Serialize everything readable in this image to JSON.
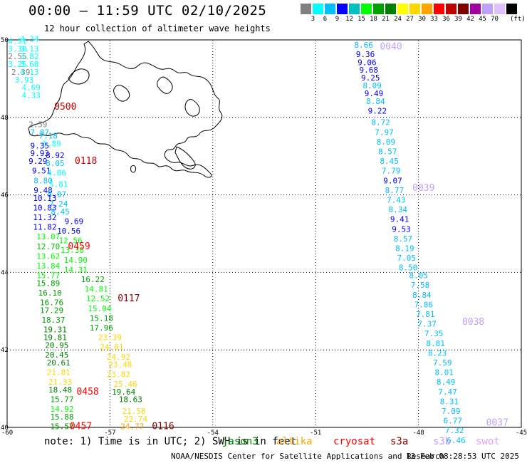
{
  "header": {
    "title": "00:00 – 11:59 UTC 02/10/2025",
    "subtitle": "12 hour collection of altimeter wave heights"
  },
  "legend": {
    "colors": [
      "#808080",
      "#00ffff",
      "#00bfff",
      "#0000ff",
      "#00c0c0",
      "#00ff00",
      "#00a000",
      "#008000",
      "#ffff00",
      "#ffd700",
      "#ffa500",
      "#ff0000",
      "#c00000",
      "#800000",
      "#a000a0",
      "#c0a0ff",
      "#e0c0ff",
      "#000000"
    ],
    "labels": [
      "3",
      "6",
      "9",
      "12",
      "15",
      "18",
      "21",
      "24",
      "27",
      "30",
      "33",
      "36",
      "39",
      "42",
      "45",
      "70"
    ],
    "unit": "(ft)"
  },
  "axes": {
    "lon_ticks": [
      {
        "v": -60,
        "t": "-60"
      },
      {
        "v": -57,
        "t": "-57"
      },
      {
        "v": -54,
        "t": "-54"
      },
      {
        "v": -51,
        "t": "-51"
      },
      {
        "v": -48,
        "t": "-48"
      },
      {
        "v": -45,
        "t": "-45"
      }
    ],
    "lat_ticks": [
      {
        "v": 50,
        "t": "50"
      },
      {
        "v": 48,
        "t": "48"
      },
      {
        "v": 46,
        "t": "46"
      },
      {
        "v": 44,
        "t": "44"
      },
      {
        "v": 42,
        "t": "42"
      },
      {
        "v": 40,
        "t": "40"
      }
    ],
    "lon_range": [
      -60,
      -45
    ],
    "lat_range": [
      40,
      50
    ]
  },
  "tracks": [
    {
      "label": "0040",
      "color": "#c0a0ff",
      "label_pos": [
        -48.8,
        49.75
      ],
      "points": [
        [
          -49.6,
          49.8,
          "8.66",
          "#00bfff"
        ],
        [
          -49.55,
          49.56,
          "9.36",
          "#0000ff"
        ],
        [
          -49.5,
          49.35,
          "9.06",
          "#0000ff"
        ],
        [
          -49.45,
          49.15,
          "9.68",
          "#0000ff"
        ],
        [
          -49.4,
          48.95,
          "9.25",
          "#0000ff"
        ],
        [
          -49.35,
          48.75,
          "8.09",
          "#00bfff"
        ],
        [
          -49.3,
          48.55,
          "9.49",
          "#0000ff"
        ],
        [
          -49.25,
          48.35,
          "8.84",
          "#00bfff"
        ],
        [
          -49.2,
          48.1,
          "9.22",
          "#0000ff"
        ]
      ]
    },
    {
      "label": "0039",
      "color": "#c0a0ff",
      "label_pos": [
        -47.85,
        46.1
      ],
      "points": [
        [
          -49.1,
          47.8,
          "8.72",
          "#00bfff"
        ],
        [
          -49.0,
          47.55,
          "7.97",
          "#00bfff"
        ],
        [
          -48.95,
          47.3,
          "8.09",
          "#00bfff"
        ],
        [
          -48.9,
          47.05,
          "8.57",
          "#00bfff"
        ],
        [
          -48.85,
          46.8,
          "8.45",
          "#00bfff"
        ],
        [
          -48.8,
          46.55,
          "7.79",
          "#00bfff"
        ],
        [
          -48.75,
          46.3,
          "9.07",
          "#0000ff"
        ],
        [
          -48.7,
          46.05,
          "8.77",
          "#00bfff"
        ],
        [
          -48.65,
          45.8,
          "7.43",
          "#00bfff"
        ],
        [
          -48.6,
          45.55,
          "8.34",
          "#00bfff"
        ],
        [
          -48.55,
          45.3,
          "9.41",
          "#0000ff"
        ],
        [
          -48.5,
          45.05,
          "9.53",
          "#0000ff"
        ],
        [
          -48.45,
          44.8,
          "8.57",
          "#00bfff"
        ],
        [
          -48.4,
          44.55,
          "8.19",
          "#00bfff"
        ],
        [
          -48.35,
          44.3,
          "7.05",
          "#00bfff"
        ],
        [
          -48.3,
          44.05,
          "8.50",
          "#00bfff"
        ]
      ]
    },
    {
      "label": "0038",
      "color": "#c0a0ff",
      "label_pos": [
        -46.4,
        42.65
      ],
      "points": [
        [
          -48.0,
          43.85,
          "8.05",
          "#00bfff"
        ],
        [
          -47.95,
          43.6,
          "7.58",
          "#00bfff"
        ],
        [
          -47.9,
          43.35,
          "8.84",
          "#00bfff"
        ],
        [
          -47.85,
          43.1,
          "7.86",
          "#00bfff"
        ],
        [
          -47.8,
          42.85,
          "7.81",
          "#00bfff"
        ],
        [
          -47.75,
          42.6,
          "7.37",
          "#00bfff"
        ],
        [
          -47.55,
          42.35,
          "7.35",
          "#00bfff"
        ],
        [
          -47.5,
          42.1,
          "8.81",
          "#00bfff"
        ],
        [
          -47.45,
          41.85,
          "8.23",
          "#00bfff"
        ],
        [
          -47.3,
          41.6,
          "7.59",
          "#00bfff"
        ],
        [
          -47.25,
          41.35,
          "8.01",
          "#00bfff"
        ],
        [
          -47.2,
          41.1,
          "8.49",
          "#00bfff"
        ],
        [
          -47.15,
          40.85,
          "7.47",
          "#00bfff"
        ],
        [
          -47.1,
          40.6,
          "8.31",
          "#00bfff"
        ],
        [
          -47.05,
          40.35,
          "7.09",
          "#00bfff"
        ],
        [
          -47.0,
          40.1,
          "6.77",
          "#00bfff"
        ],
        [
          -46.95,
          39.85,
          "7.32",
          "#00bfff"
        ],
        [
          -46.9,
          39.6,
          "6.46",
          "#00bfff"
        ]
      ],
      "extra_label": {
        "text": "0037",
        "color": "#c0a0ff",
        "pos": [
          -45.7,
          40.05
        ]
      }
    },
    {
      "label": "0500",
      "color": "#c00000",
      "label_pos": [
        -58.3,
        48.2
      ],
      "points": [
        [
          -59.7,
          49.9,
          "4.51",
          "#00ffff"
        ],
        [
          -59.35,
          49.95,
          "4.34",
          "#00ffff"
        ],
        [
          -59.7,
          49.7,
          "3.30",
          "#00ffff"
        ],
        [
          -59.35,
          49.7,
          "3.13",
          "#00ffff"
        ],
        [
          -59.7,
          49.5,
          "2.55",
          "#808080"
        ],
        [
          -59.35,
          49.5,
          "3.82",
          "#00ffff"
        ],
        [
          -59.7,
          49.3,
          "3.25",
          "#00ffff"
        ],
        [
          -59.35,
          49.3,
          "3.68",
          "#00ffff"
        ],
        [
          -59.6,
          49.1,
          "2.39",
          "#808080"
        ],
        [
          -59.35,
          49.1,
          "4.13",
          "#00ffff"
        ],
        [
          -59.5,
          48.9,
          "3.93",
          "#00ffff"
        ],
        [
          -59.3,
          48.7,
          "4.69",
          "#00ffff"
        ],
        [
          -59.3,
          48.5,
          "4.33",
          "#00ffff"
        ]
      ]
    },
    {
      "label": "0118",
      "color": "#c00000",
      "label_pos": [
        -57.7,
        46.8
      ],
      "points": [
        [
          -59.1,
          47.75,
          "2.59",
          "#808080"
        ],
        [
          -59.05,
          47.55,
          "7.87",
          "#00bfff"
        ],
        [
          -58.8,
          47.45,
          "7.18",
          "#00bfff"
        ],
        [
          -58.7,
          47.25,
          "6.89",
          "#00ffff"
        ],
        [
          -59.05,
          47.2,
          "9.35",
          "#0000ff"
        ],
        [
          -59.05,
          47.0,
          "9.93",
          "#0000ff"
        ],
        [
          -58.6,
          46.95,
          "8.92",
          "#0000ff"
        ],
        [
          -59.1,
          46.8,
          "9.29",
          "#0000ff"
        ],
        [
          -58.6,
          46.75,
          "8.05",
          "#00bfff"
        ],
        [
          -59.0,
          46.55,
          "9.51",
          "#0000ff"
        ],
        [
          -58.55,
          46.5,
          "4.86",
          "#00ffff"
        ],
        [
          -58.95,
          46.3,
          "8.80",
          "#00bfff"
        ],
        [
          -58.5,
          46.2,
          "5.81",
          "#00ffff"
        ],
        [
          -58.95,
          46.05,
          "9.48",
          "#0000ff"
        ],
        [
          -58.55,
          45.95,
          "8.07",
          "#00bfff"
        ],
        [
          -58.9,
          45.85,
          "10.13",
          "#0000ff"
        ],
        [
          -58.5,
          45.7,
          "7.24",
          "#00bfff"
        ],
        [
          -58.9,
          45.6,
          "10.83",
          "#0000ff"
        ],
        [
          -58.45,
          45.5,
          "8.45",
          "#00bfff"
        ],
        [
          -58.9,
          45.35,
          "11.32",
          "#0000ff"
        ],
        [
          -58.05,
          45.25,
          "9.69",
          "#0000ff"
        ],
        [
          -58.9,
          45.1,
          "11.82",
          "#0000ff"
        ],
        [
          -58.2,
          45.0,
          "10.56",
          "#0000ff"
        ]
      ]
    },
    {
      "label": "0459",
      "color": "#ff0000",
      "label_pos": [
        -57.9,
        44.6
      ],
      "points": [
        [
          -58.8,
          44.85,
          "13.07",
          "#00ff00"
        ],
        [
          -58.15,
          44.75,
          "12.56",
          "#00ff00"
        ],
        [
          -58.8,
          44.6,
          "12.70",
          "#00c000"
        ],
        [
          -58.1,
          44.5,
          "13.38",
          "#00ff00"
        ],
        [
          -58.8,
          44.35,
          "13.62",
          "#00ff00"
        ],
        [
          -58.0,
          44.25,
          "14.90",
          "#00ff00"
        ],
        [
          -58.8,
          44.1,
          "13.84",
          "#00ff00"
        ],
        [
          -58.0,
          44.0,
          "14.31",
          "#00ff00"
        ],
        [
          -58.8,
          43.85,
          "15.77",
          "#00ff00"
        ],
        [
          -57.5,
          43.75,
          "16.22",
          "#00a000"
        ],
        [
          -58.8,
          43.65,
          "15.89",
          "#00a000"
        ],
        [
          -57.4,
          43.5,
          "14.81",
          "#00ff00"
        ],
        [
          -58.75,
          43.4,
          "16.10",
          "#00a000"
        ],
        [
          -57.35,
          43.25,
          "12.52",
          "#00ff00"
        ],
        [
          -58.7,
          43.15,
          "16.76",
          "#00a000"
        ],
        [
          -57.3,
          43.0,
          "15.04",
          "#00ff00"
        ],
        [
          -58.7,
          42.95,
          "17.29",
          "#00a000"
        ],
        [
          -57.25,
          42.75,
          "15.18",
          "#00a000"
        ],
        [
          -58.65,
          42.7,
          "18.37",
          "#00a000"
        ],
        [
          -57.25,
          42.5,
          "17.96",
          "#00a000"
        ],
        [
          -58.6,
          42.45,
          "19.31",
          "#008000"
        ],
        [
          -57.0,
          42.25,
          "23.39",
          "#ffd700"
        ]
      ]
    },
    {
      "label": "0117",
      "color": "#800000",
      "label_pos": [
        -56.45,
        43.25
      ],
      "points": [
        [
          -58.6,
          42.25,
          "19.81",
          "#008000"
        ],
        [
          -56.95,
          42.0,
          "24.01",
          "#ffd700"
        ],
        [
          -58.55,
          42.05,
          "20.95",
          "#008000"
        ],
        [
          -56.75,
          41.75,
          "24.92",
          "#ffd700"
        ],
        [
          -58.55,
          41.8,
          "20.45",
          "#008000"
        ],
        [
          -56.7,
          41.55,
          "23.48",
          "#ffd700"
        ],
        [
          -58.5,
          41.6,
          "20.61",
          "#008000"
        ],
        [
          -56.75,
          41.3,
          "23.82",
          "#ffd700"
        ],
        [
          -58.5,
          41.35,
          "21.81",
          "#ffd700"
        ],
        [
          -56.55,
          41.05,
          "25.46",
          "#ffd700"
        ],
        [
          -58.45,
          41.1,
          "21.33",
          "#ffd700"
        ]
      ]
    },
    {
      "label": "0458",
      "color": "#ff0000",
      "label_pos": [
        -57.65,
        40.85
      ],
      "points": [
        [
          -58.45,
          40.9,
          "18.48",
          "#008000"
        ],
        [
          -56.6,
          40.85,
          "19.64",
          "#008000"
        ],
        [
          -58.4,
          40.65,
          "15.77",
          "#00a000"
        ],
        [
          -56.4,
          40.65,
          "18.63",
          "#008000"
        ],
        [
          -58.4,
          40.4,
          "14.92",
          "#00ff00"
        ],
        [
          -56.3,
          40.35,
          "21.58",
          "#ffd700"
        ],
        [
          -58.4,
          40.2,
          "15.88",
          "#00a000"
        ],
        [
          -56.25,
          40.15,
          "22.74",
          "#ffd700"
        ]
      ]
    },
    {
      "label": "0457",
      "color": "#ff0000",
      "label_pos": [
        -57.85,
        39.95
      ],
      "points": [
        [
          -58.4,
          39.95,
          "15.57",
          "#00a000"
        ]
      ]
    },
    {
      "label": "0116",
      "color": "#800000",
      "label_pos": [
        -55.45,
        39.95
      ],
      "points": [
        [
          -56.35,
          39.95,
          "24.77",
          "#ffa500"
        ]
      ]
    }
  ],
  "footer": {
    "note_text": "note: 1) Time is in UTC; 2) SWH is in feet",
    "sat_names": [
      {
        "name": "jason3",
        "color": "#008000"
      },
      {
        "name": "altika",
        "color": "#ffa500"
      },
      {
        "name": "cryosat",
        "color": "#ff0000"
      },
      {
        "name": "s3a",
        "color": "#800000"
      },
      {
        "name": "s3b",
        "color": "#c0a0ff"
      },
      {
        "name": "swot",
        "color": "#e0a0ff"
      }
    ],
    "credit": "NOAA/NESDIS Center for Satellite Applications and Research",
    "timestamp": "13 Feb 08:28:53 UTC 2025"
  }
}
